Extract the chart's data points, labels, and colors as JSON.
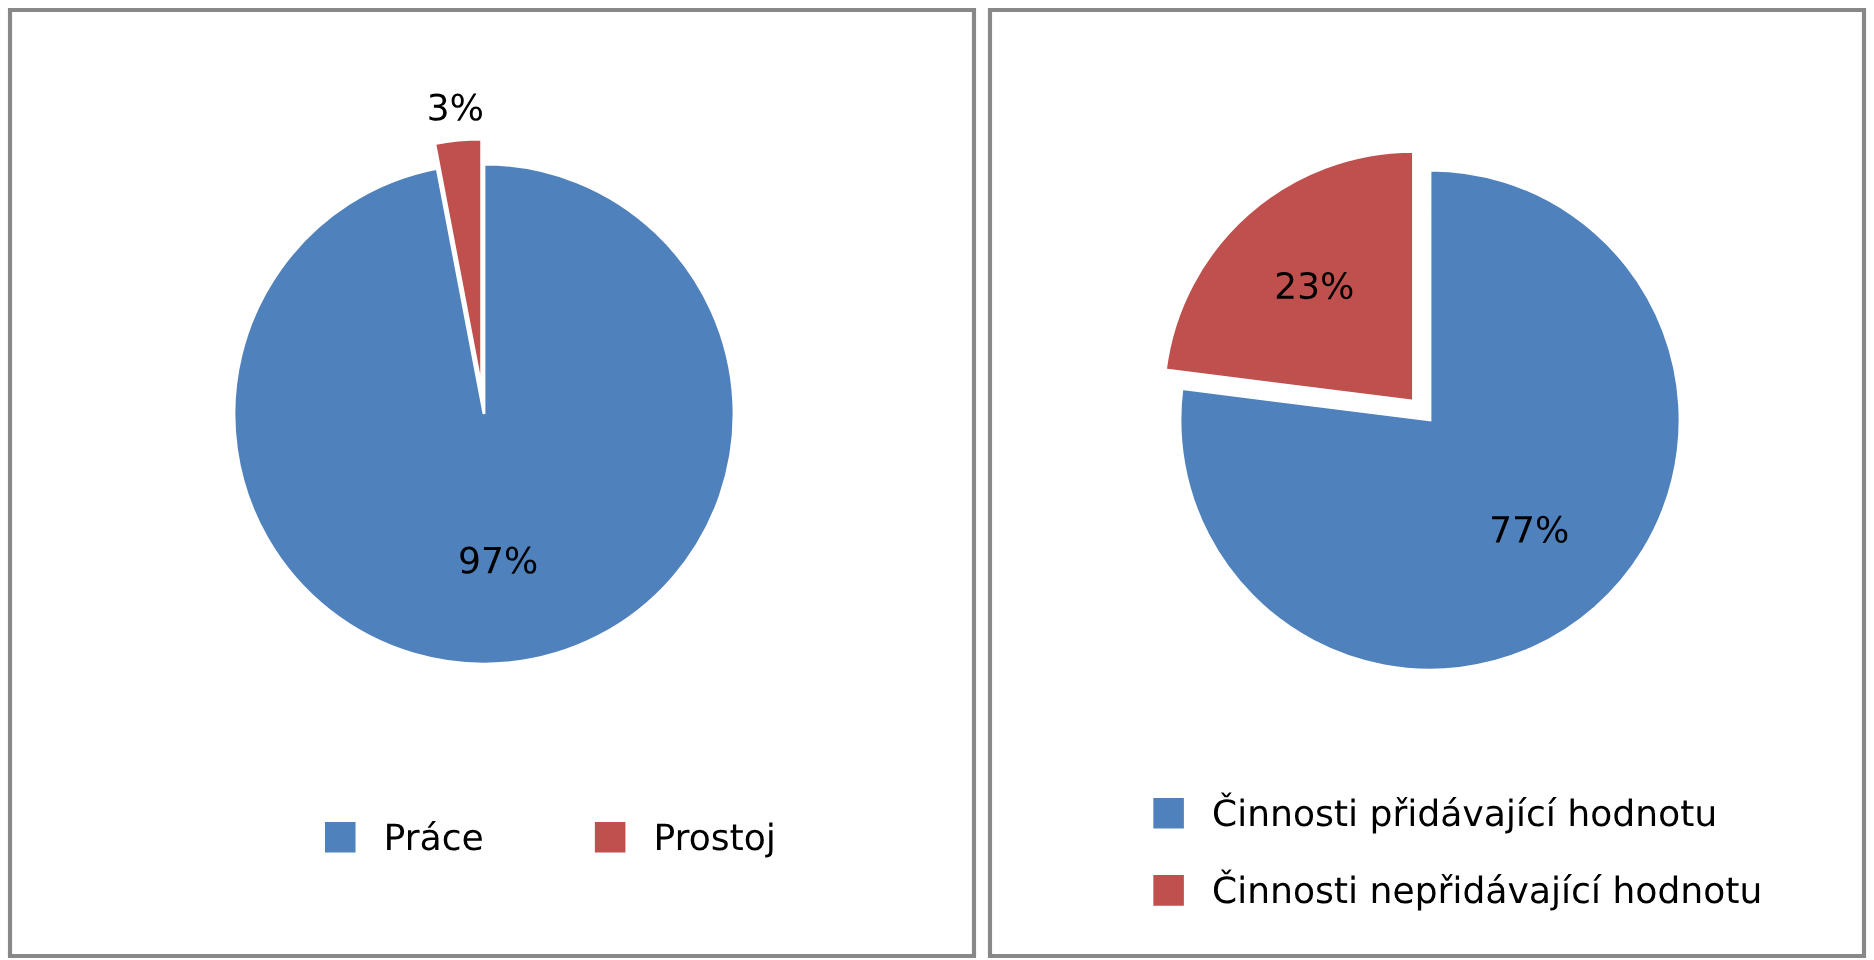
{
  "chart_data": [
    {
      "type": "pie",
      "categories": [
        "Práce",
        "Prostoj"
      ],
      "values": [
        97,
        3
      ],
      "colors": [
        "#4f81bd",
        "#c0504d"
      ],
      "value_labels": [
        "97%",
        "3%"
      ],
      "legend": "bottom"
    },
    {
      "type": "pie",
      "categories": [
        "Činnosti přidávající hodnotu",
        "Činnosti nepřidávající hodnotu"
      ],
      "values": [
        77,
        23
      ],
      "colors": [
        "#4f81bd",
        "#c0504d"
      ],
      "value_labels": [
        "77%",
        "23%"
      ],
      "legend": "bottom"
    }
  ]
}
